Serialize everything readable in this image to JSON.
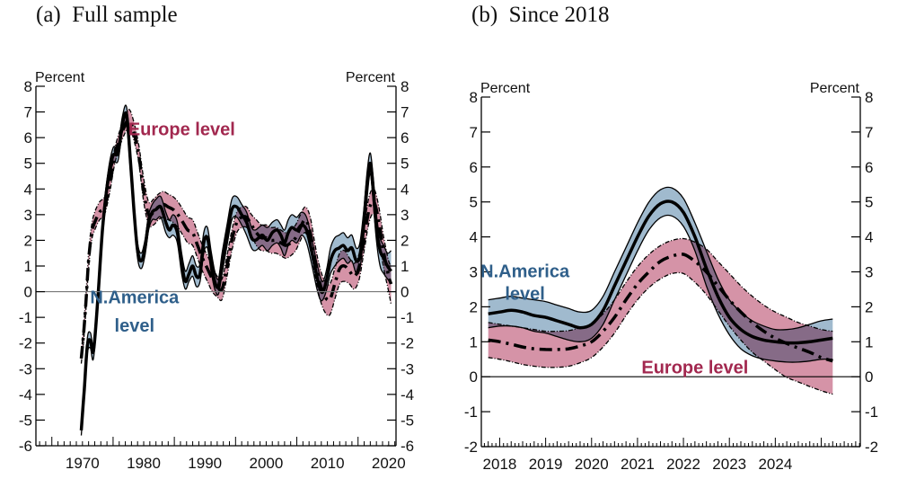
{
  "colors": {
    "na_band": "#8faec6",
    "eu_band": "#d593a7",
    "overlap": "#7d739a",
    "na_text": "#2f5f8a",
    "eu_text": "#a2284f",
    "line": "#000000",
    "zero_line": "#777777"
  },
  "chart_data": [
    {
      "id": "full_sample",
      "type": "line",
      "title": "(a)  Full sample",
      "ylabel_left": "Percent",
      "ylabel_right": "Percent",
      "xlabel": "",
      "xlim": [
        1962.4,
        2021.2
      ],
      "ylim": [
        -6,
        8
      ],
      "yticks": [
        8,
        7,
        6,
        5,
        4,
        3,
        2,
        1,
        0,
        -1,
        -2,
        -3,
        -4,
        -5,
        -6
      ],
      "xticks": [
        1970,
        1980,
        1990,
        2000,
        2010,
        2020
      ],
      "grid": false,
      "annotations": [
        {
          "text": "Europe level",
          "series": "Europe level",
          "x": 1986.2,
          "y": 6.1,
          "anchor": "middle"
        },
        {
          "text": "N.America",
          "series": "N.America level",
          "x": 1978.5,
          "y": -0.45,
          "anchor": "middle"
        },
        {
          "text": "level",
          "series": "N.America level",
          "x": 1978.5,
          "y": -1.55,
          "anchor": "middle"
        }
      ],
      "series": [
        {
          "name": "N.America level",
          "style": "solid",
          "band": "na",
          "x": [
            1969.8,
            1970.3,
            1970.8,
            1971.3,
            1971.8,
            1972.5,
            1973.3,
            1974.2,
            1975.0,
            1975.8,
            1976.5,
            1977.2,
            1977.8,
            1978.4,
            1979.0,
            1979.6,
            1980.2,
            1980.8,
            1981.4,
            1982.0,
            1982.8,
            1983.6,
            1984.2,
            1984.8,
            1985.5,
            1986.2,
            1986.8,
            1987.4,
            1988.0,
            1988.6,
            1989.2,
            1989.8,
            1990.4,
            1991.0,
            1991.6,
            1992.2,
            1992.8,
            1993.6,
            1994.4,
            1995.2,
            1996.0,
            1996.8,
            1997.6,
            1998.2,
            1998.8,
            1999.4,
            2000.2,
            2001.0,
            2001.8,
            2002.4,
            2003.0,
            2003.6,
            2004.2,
            2005.0,
            2005.8,
            2006.6,
            2007.4,
            2008.2,
            2008.8,
            2009.3,
            2009.9,
            2010.5,
            2011.2,
            2011.9,
            2012.6,
            2013.3,
            2014.0,
            2014.7,
            2015.3,
            2015.9,
            2016.5,
            2017.0,
            2017.5,
            2018.0,
            2018.6,
            2019.2,
            2019.8,
            2020.4
          ],
          "y": [
            -5.4,
            -3.8,
            -2.1,
            -1.9,
            -2.3,
            -0.3,
            2.5,
            4.4,
            5.3,
            5.4,
            6.5,
            6.9,
            5.2,
            3.2,
            1.6,
            1.2,
            1.7,
            2.7,
            3.1,
            3.2,
            3.3,
            2.7,
            2.4,
            2.6,
            2.3,
            1.1,
            0.4,
            0.7,
            1.0,
            0.6,
            0.7,
            1.9,
            2.1,
            1.2,
            0.4,
            0.2,
            1.1,
            2.2,
            3.2,
            3.3,
            3.0,
            2.7,
            2.1,
            2.0,
            2.1,
            2.2,
            2.0,
            2.3,
            2.4,
            2.2,
            1.9,
            2.3,
            2.5,
            2.4,
            2.6,
            2.4,
            1.6,
            0.7,
            0.1,
            0.0,
            0.5,
            1.2,
            1.6,
            1.7,
            1.8,
            1.6,
            1.7,
            1.2,
            1.4,
            2.6,
            4.2,
            5.0,
            3.9,
            2.5,
            1.6,
            1.3,
            1.0,
            0.8
          ],
          "lower": [
            -5.6,
            -4.0,
            -2.4,
            -2.2,
            -2.6,
            -0.6,
            2.2,
            4.1,
            5.0,
            5.1,
            6.2,
            6.5,
            4.8,
            2.9,
            1.3,
            0.9,
            1.4,
            2.4,
            2.8,
            2.8,
            2.9,
            2.3,
            2.1,
            2.2,
            1.9,
            0.7,
            0.1,
            0.4,
            0.6,
            0.2,
            0.4,
            1.5,
            1.7,
            0.8,
            0.1,
            -0.1,
            0.7,
            1.8,
            2.8,
            2.9,
            2.6,
            2.2,
            1.7,
            1.6,
            1.7,
            1.8,
            1.6,
            1.8,
            1.9,
            1.7,
            1.4,
            1.8,
            2.0,
            1.9,
            2.2,
            1.9,
            1.1,
            0.2,
            -0.3,
            -0.3,
            0.1,
            0.7,
            1.0,
            1.2,
            1.3,
            1.1,
            1.2,
            0.7,
            0.9,
            2.1,
            3.7,
            4.6,
            3.4,
            2.0,
            1.0,
            0.7,
            0.5,
            0.3
          ],
          "upper": [
            -5.2,
            -3.6,
            -1.8,
            -1.6,
            -2.0,
            0.0,
            2.8,
            4.7,
            5.6,
            5.7,
            6.8,
            7.2,
            5.5,
            3.5,
            1.9,
            1.5,
            2.0,
            3.0,
            3.4,
            3.6,
            3.7,
            3.1,
            2.8,
            3.0,
            2.7,
            1.5,
            0.8,
            1.1,
            1.4,
            1.0,
            1.1,
            2.3,
            2.5,
            1.6,
            0.8,
            0.5,
            1.5,
            2.6,
            3.6,
            3.7,
            3.4,
            3.1,
            2.5,
            2.4,
            2.5,
            2.6,
            2.5,
            2.7,
            2.8,
            2.6,
            2.4,
            2.8,
            3.0,
            2.9,
            3.1,
            2.9,
            2.1,
            1.2,
            0.6,
            0.4,
            0.9,
            1.7,
            2.1,
            2.2,
            2.3,
            2.1,
            2.2,
            1.7,
            1.9,
            3.1,
            4.7,
            5.4,
            4.4,
            3.0,
            2.1,
            1.8,
            1.5,
            1.6
          ]
        },
        {
          "name": "Europe level",
          "style": "dash-dot",
          "band": "eu",
          "x": [
            1969.8,
            1970.2,
            1970.6,
            1971.0,
            1971.5,
            1972.0,
            1972.8,
            1973.6,
            1974.4,
            1975.2,
            1976.0,
            1976.8,
            1977.6,
            1978.4,
            1979.2,
            1980.0,
            1980.8,
            1981.6,
            1982.4,
            1983.2,
            1984.0,
            1984.8,
            1985.6,
            1986.4,
            1987.2,
            1988.0,
            1988.8,
            1989.6,
            1990.4,
            1991.2,
            1992.0,
            1992.8,
            1993.6,
            1994.4,
            1995.2,
            1996.0,
            1996.8,
            1997.6,
            1998.4,
            1999.2,
            2000.0,
            2000.8,
            2001.6,
            2002.4,
            2003.2,
            2004.0,
            2004.8,
            2005.6,
            2006.4,
            2007.2,
            2008.0,
            2008.8,
            2009.6,
            2010.4,
            2011.2,
            2012.0,
            2012.8,
            2013.6,
            2014.4,
            2015.2,
            2016.0,
            2016.8,
            2017.6,
            2018.4,
            2019.2,
            2020.0,
            2020.4
          ],
          "y": [
            -2.6,
            -1.6,
            -0.3,
            1.2,
            2.3,
            2.7,
            3.1,
            3.3,
            4.1,
            5.2,
            5.9,
            6.4,
            6.7,
            6.2,
            5.3,
            3.9,
            3.0,
            3.1,
            3.3,
            3.4,
            3.3,
            3.2,
            3.0,
            2.7,
            2.4,
            2.3,
            1.8,
            1.3,
            0.9,
            0.5,
            0.2,
            0.1,
            1.0,
            2.0,
            2.7,
            2.9,
            2.9,
            2.6,
            2.3,
            2.1,
            2.1,
            2.0,
            2.0,
            1.9,
            1.8,
            1.9,
            2.1,
            2.5,
            2.8,
            2.3,
            1.2,
            0.3,
            -0.2,
            -0.3,
            0.3,
            0.9,
            1.0,
            0.8,
            0.6,
            1.0,
            2.1,
            3.2,
            3.5,
            2.7,
            1.5,
            0.6,
            0.3
          ],
          "lower": [
            -2.8,
            -1.9,
            -0.6,
            0.9,
            2.0,
            2.4,
            2.8,
            3.0,
            3.8,
            4.9,
            5.6,
            6.1,
            6.4,
            5.9,
            5.0,
            3.5,
            2.6,
            2.6,
            2.8,
            2.9,
            2.8,
            2.7,
            2.5,
            2.2,
            1.9,
            1.8,
            1.3,
            0.8,
            0.4,
            0.0,
            -0.2,
            -0.3,
            0.6,
            1.6,
            2.3,
            2.5,
            2.5,
            2.2,
            1.8,
            1.6,
            1.6,
            1.5,
            1.5,
            1.4,
            1.3,
            1.4,
            1.6,
            2.0,
            2.3,
            1.7,
            0.6,
            -0.3,
            -0.8,
            -0.9,
            -0.3,
            0.3,
            0.4,
            0.3,
            0.1,
            0.5,
            1.6,
            2.7,
            3.0,
            2.1,
            0.9,
            0.0,
            -0.5
          ],
          "upper": [
            -2.4,
            -1.3,
            0.0,
            1.5,
            2.6,
            3.1,
            3.5,
            3.7,
            4.4,
            5.5,
            6.2,
            6.7,
            7.1,
            6.6,
            5.7,
            4.4,
            3.5,
            3.6,
            3.8,
            3.9,
            3.8,
            3.7,
            3.5,
            3.2,
            2.9,
            2.8,
            2.3,
            1.8,
            1.4,
            1.0,
            0.6,
            0.5,
            1.4,
            2.4,
            3.1,
            3.3,
            3.3,
            3.0,
            2.8,
            2.6,
            2.6,
            2.5,
            2.5,
            2.4,
            2.3,
            2.4,
            2.6,
            3.0,
            3.3,
            2.9,
            1.8,
            0.9,
            0.4,
            0.3,
            0.9,
            1.5,
            1.6,
            1.3,
            1.1,
            1.5,
            2.6,
            3.7,
            4.0,
            3.3,
            2.1,
            1.2,
            1.0
          ]
        }
      ]
    },
    {
      "id": "since_2018",
      "type": "line",
      "title": "(b)  Since 2018",
      "ylabel_left": "Percent",
      "ylabel_right": "Percent",
      "xlabel": "",
      "xlim": [
        2017.6,
        2025.85
      ],
      "ylim": [
        -2,
        8
      ],
      "yticks": [
        8,
        7,
        6,
        5,
        4,
        3,
        2,
        1,
        0,
        -1,
        -2
      ],
      "xticks": [
        2018,
        2019,
        2020,
        2021,
        2022,
        2023,
        2024
      ],
      "grid": false,
      "annotations": [
        {
          "text": "N.America",
          "series": "N.America level",
          "x": 2018.55,
          "y": 2.85,
          "anchor": "middle"
        },
        {
          "text": "level",
          "series": "N.America level",
          "x": 2018.55,
          "y": 2.2,
          "anchor": "middle"
        },
        {
          "text": "Europe level",
          "series": "Europe level",
          "x": 2022.25,
          "y": 0.1,
          "anchor": "middle"
        }
      ],
      "series": [
        {
          "name": "N.America level",
          "style": "solid",
          "band": "na",
          "x": [
            2017.75,
            2018.0,
            2018.25,
            2018.5,
            2018.75,
            2019.0,
            2019.25,
            2019.5,
            2019.75,
            2020.0,
            2020.25,
            2020.5,
            2020.75,
            2021.0,
            2021.25,
            2021.5,
            2021.75,
            2022.0,
            2022.25,
            2022.5,
            2022.75,
            2023.0,
            2023.25,
            2023.5,
            2023.75,
            2024.0,
            2024.25,
            2024.5,
            2024.75,
            2025.0,
            2025.25
          ],
          "y": [
            1.8,
            1.85,
            1.9,
            1.85,
            1.75,
            1.7,
            1.6,
            1.5,
            1.4,
            1.5,
            1.9,
            2.6,
            3.3,
            4.0,
            4.6,
            4.95,
            5.0,
            4.7,
            4.0,
            3.1,
            2.3,
            1.7,
            1.35,
            1.15,
            1.05,
            1.0,
            0.97,
            0.97,
            1.0,
            1.05,
            1.1
          ],
          "lower": [
            1.4,
            1.45,
            1.45,
            1.4,
            1.3,
            1.25,
            1.15,
            1.05,
            1.0,
            1.1,
            1.5,
            2.2,
            2.9,
            3.6,
            4.2,
            4.55,
            4.6,
            4.3,
            3.6,
            2.6,
            1.8,
            1.2,
            0.8,
            0.6,
            0.5,
            0.45,
            0.42,
            0.42,
            0.45,
            0.5,
            0.5
          ],
          "upper": [
            2.2,
            2.25,
            2.3,
            2.25,
            2.2,
            2.15,
            2.05,
            1.95,
            1.85,
            1.9,
            2.3,
            3.0,
            3.7,
            4.4,
            5.0,
            5.35,
            5.4,
            5.1,
            4.4,
            3.6,
            2.8,
            2.2,
            1.85,
            1.6,
            1.45,
            1.35,
            1.35,
            1.4,
            1.5,
            1.6,
            1.65
          ]
        },
        {
          "name": "Europe level",
          "style": "dash-dot",
          "band": "eu",
          "x": [
            2017.75,
            2018.0,
            2018.25,
            2018.5,
            2018.75,
            2019.0,
            2019.25,
            2019.5,
            2019.75,
            2020.0,
            2020.25,
            2020.5,
            2020.75,
            2021.0,
            2021.25,
            2021.5,
            2021.75,
            2022.0,
            2022.25,
            2022.5,
            2022.75,
            2023.0,
            2023.25,
            2023.5,
            2023.75,
            2024.0,
            2024.25,
            2024.5,
            2024.75,
            2025.0,
            2025.25
          ],
          "y": [
            1.05,
            1.0,
            0.93,
            0.85,
            0.8,
            0.78,
            0.78,
            0.8,
            0.88,
            1.0,
            1.3,
            1.7,
            2.2,
            2.65,
            3.0,
            3.3,
            3.45,
            3.5,
            3.3,
            3.0,
            2.6,
            2.2,
            1.85,
            1.55,
            1.3,
            1.1,
            0.95,
            0.82,
            0.7,
            0.55,
            0.45
          ],
          "lower": [
            0.55,
            0.5,
            0.43,
            0.35,
            0.3,
            0.27,
            0.27,
            0.3,
            0.4,
            0.55,
            0.85,
            1.25,
            1.75,
            2.2,
            2.55,
            2.8,
            2.95,
            2.95,
            2.7,
            2.35,
            1.9,
            1.45,
            1.05,
            0.7,
            0.45,
            0.2,
            -0.02,
            -0.15,
            -0.28,
            -0.4,
            -0.5
          ],
          "upper": [
            1.55,
            1.5,
            1.45,
            1.4,
            1.35,
            1.3,
            1.3,
            1.32,
            1.4,
            1.5,
            1.8,
            2.2,
            2.7,
            3.15,
            3.5,
            3.75,
            3.9,
            3.95,
            3.85,
            3.65,
            3.3,
            2.95,
            2.6,
            2.3,
            2.05,
            1.85,
            1.7,
            1.55,
            1.45,
            1.35,
            1.3
          ]
        }
      ]
    }
  ]
}
